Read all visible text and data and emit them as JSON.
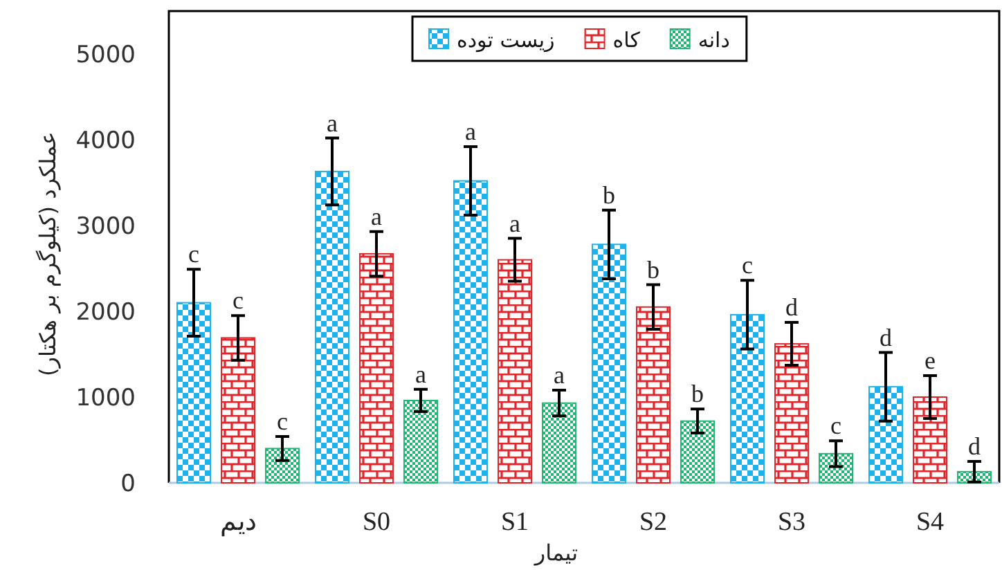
{
  "chart_data": {
    "type": "bar",
    "xlabel": "تیمار",
    "ylabel": "عملکرد (کیلوگرم بر هکتار)",
    "categories": [
      "دیم",
      "S0",
      "S1",
      "S2",
      "S3",
      "S4"
    ],
    "series": [
      {
        "name": "زیست توده",
        "color": "#1fb2ea",
        "values": [
          2100,
          3630,
          3520,
          2780,
          1960,
          1120
        ],
        "errors": [
          390,
          390,
          400,
          400,
          400,
          400
        ],
        "value_labels": [
          "c",
          "a",
          "a",
          "b",
          "c",
          "d"
        ]
      },
      {
        "name": "کاه",
        "color": "#e0262b",
        "values": [
          1690,
          2670,
          2600,
          2050,
          1620,
          1000
        ],
        "errors": [
          260,
          260,
          250,
          260,
          250,
          250
        ],
        "value_labels": [
          "c",
          "a",
          "a",
          "b",
          "d",
          "e"
        ]
      },
      {
        "name": "دانه",
        "color": "#22b573",
        "values": [
          400,
          960,
          930,
          720,
          340,
          130
        ],
        "errors": [
          140,
          130,
          150,
          140,
          150,
          120
        ],
        "value_labels": [
          "c",
          "a",
          "a",
          "b",
          "c",
          "d"
        ]
      }
    ],
    "ylim": [
      0,
      5500
    ],
    "yticks": [
      0,
      1000,
      2000,
      3000,
      4000,
      5000
    ],
    "grid": false,
    "legend": "top"
  }
}
